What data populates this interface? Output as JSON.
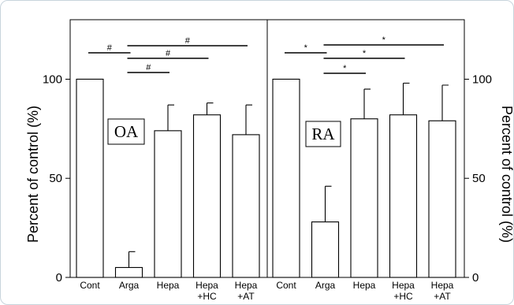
{
  "chart_data": [
    {
      "type": "bar",
      "panel_label": "OA",
      "categories": [
        {
          "line1": "Cont",
          "line2": ""
        },
        {
          "line1": "Arga",
          "line2": ""
        },
        {
          "line1": "Hepa",
          "line2": ""
        },
        {
          "line1": "Hepa",
          "line2": "+HC"
        },
        {
          "line1": "Hepa",
          "line2": "+AT"
        }
      ],
      "values": [
        100,
        5,
        74,
        82,
        72
      ],
      "errors": [
        0,
        8,
        13,
        6,
        15
      ],
      "ylabel": "Percent of control (%)",
      "ylim": [
        0,
        130
      ],
      "yticks": [
        "0",
        "50",
        "100"
      ],
      "significance": [
        {
          "from": 0,
          "to": 1,
          "symbol": "#"
        },
        {
          "from": 1,
          "to": 4,
          "symbol": "#"
        },
        {
          "from": 1,
          "to": 3,
          "symbol": "#"
        },
        {
          "from": 1,
          "to": 2,
          "symbol": "#"
        }
      ]
    },
    {
      "type": "bar",
      "panel_label": "RA",
      "categories": [
        {
          "line1": "Cont",
          "line2": ""
        },
        {
          "line1": "Arga",
          "line2": ""
        },
        {
          "line1": "Hepa",
          "line2": ""
        },
        {
          "line1": "Hepa",
          "line2": "+HC"
        },
        {
          "line1": "Hepa",
          "line2": "+AT"
        }
      ],
      "values": [
        100,
        28,
        80,
        82,
        79
      ],
      "errors": [
        0,
        18,
        15,
        16,
        18
      ],
      "ylabel": "Percent of control (%)",
      "ylim": [
        0,
        130
      ],
      "yticks": [
        "0",
        "50",
        "100"
      ],
      "significance": [
        {
          "from": 0,
          "to": 1,
          "symbol": "*"
        },
        {
          "from": 1,
          "to": 4,
          "symbol": "*"
        },
        {
          "from": 1,
          "to": 3,
          "symbol": "*"
        },
        {
          "from": 1,
          "to": 2,
          "symbol": "*"
        }
      ]
    }
  ]
}
